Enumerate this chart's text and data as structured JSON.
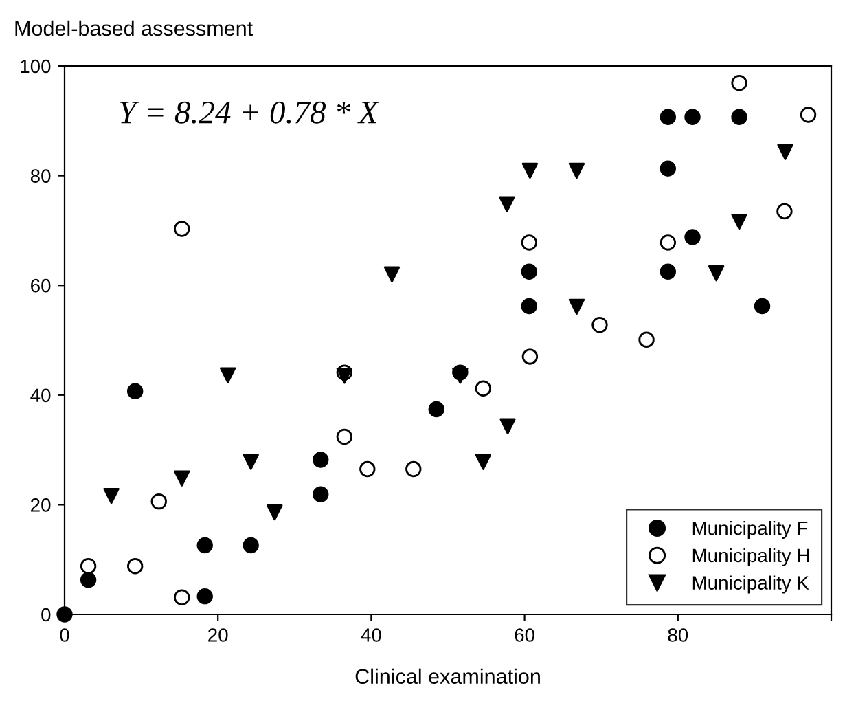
{
  "chart_data": {
    "type": "scatter",
    "xlabel": "Clinical examination",
    "ylabel": "Model-based assessment",
    "annotations": [
      "Y = 8.24 + 0.78 * X"
    ],
    "xlim": [
      0,
      100
    ],
    "xticks": [
      0,
      20,
      40,
      60,
      80,
      {
        "value": 100,
        "label": null
      }
    ],
    "ylim": [
      0,
      100
    ],
    "yticks": [
      0,
      20,
      40,
      60,
      80,
      100
    ],
    "grid": false,
    "legend": "bottom right",
    "series": [
      {
        "name": "Municipality F",
        "color": "#000000",
        "marker": "circle",
        "x": [
          0,
          3.1,
          9.2,
          18.3,
          18.3,
          24.3,
          33.4,
          33.4,
          48.5,
          51.6,
          60.6,
          60.6,
          78.7,
          78.7,
          78.7,
          81.9,
          81.9,
          88,
          91
        ],
        "values": [
          0,
          6.3,
          40.7,
          12.6,
          3.3,
          12.6,
          28.2,
          21.9,
          37.4,
          44.1,
          62.5,
          56.2,
          90.7,
          81.3,
          62.5,
          90.7,
          68.8,
          90.7,
          56.2
        ]
      },
      {
        "name": "Municipality H",
        "color": "#ffffff",
        "marker": "circle",
        "x": [
          3.1,
          9.2,
          12.3,
          15.3,
          15.3,
          36.5,
          36.5,
          39.5,
          45.5,
          54.6,
          60.7,
          60.6,
          69.8,
          75.9,
          78.7,
          88,
          93.9,
          97
        ],
        "values": [
          8.8,
          8.8,
          20.6,
          3.1,
          70.3,
          32.4,
          44.1,
          26.5,
          26.5,
          41.2,
          47,
          67.8,
          52.8,
          50.1,
          67.8,
          96.9,
          73.5,
          91.1
        ]
      },
      {
        "name": "Municipality K",
        "color": "#000000",
        "marker": "triangle",
        "x": [
          6.1,
          15.3,
          21.3,
          24.3,
          27.4,
          36.5,
          42.7,
          51.6,
          54.6,
          57.8,
          57.7,
          60.7,
          66.8,
          66.8,
          85,
          88,
          94
        ],
        "values": [
          21.6,
          24.8,
          43.6,
          27.8,
          18.6,
          43.5,
          62,
          43.5,
          27.8,
          34.3,
          74.8,
          80.9,
          80.9,
          56.1,
          62.2,
          71.6,
          84.3
        ]
      }
    ]
  }
}
